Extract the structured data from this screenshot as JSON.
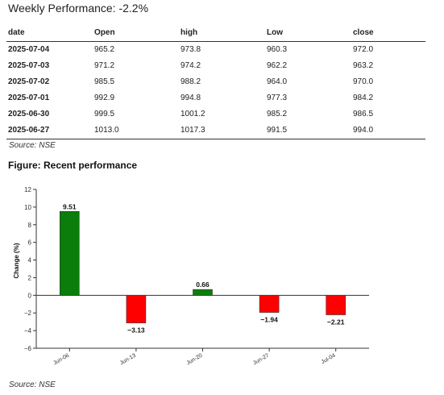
{
  "headline": "Weekly Performance: -2.2%",
  "table": {
    "columns": [
      "date",
      "Open",
      "high",
      "Low",
      "close"
    ],
    "rows": [
      [
        "2025-07-04",
        "965.2",
        "973.8",
        "960.3",
        "972.0"
      ],
      [
        "2025-07-03",
        "971.2",
        "974.2",
        "962.2",
        "963.2"
      ],
      [
        "2025-07-02",
        "985.5",
        "988.2",
        "964.0",
        "970.0"
      ],
      [
        "2025-07-01",
        "992.9",
        "994.8",
        "977.3",
        "984.2"
      ],
      [
        "2025-06-30",
        "999.5",
        "1001.2",
        "985.2",
        "986.5"
      ],
      [
        "2025-06-27",
        "1013.0",
        "1017.3",
        "991.5",
        "994.0"
      ]
    ],
    "source": "Source: NSE"
  },
  "figure_title": "Figure: Recent performance",
  "chart_source": "Source: NSE",
  "chart_data": {
    "type": "bar",
    "categories": [
      "Jun-06",
      "Jun-13",
      "Jun-20",
      "Jun-27",
      "Jul-04"
    ],
    "values": [
      9.51,
      -3.13,
      0.66,
      -1.94,
      -2.21
    ],
    "data_labels": [
      "9.51",
      "−3.13",
      "0.66",
      "−1.94",
      "−2.21"
    ],
    "title": "",
    "xlabel": "",
    "ylabel": "Change (%)",
    "ylim": [
      -6,
      12
    ],
    "yticks": [
      12,
      10,
      8,
      6,
      4,
      2,
      0,
      -2,
      -4,
      -6
    ],
    "ytick_labels": [
      "12",
      "10",
      "8",
      "6",
      "4",
      "2",
      "0",
      "−2",
      "−4",
      "−6"
    ],
    "positive_color": "#0a7d0a",
    "negative_color": "#ff0000",
    "grid": false
  }
}
